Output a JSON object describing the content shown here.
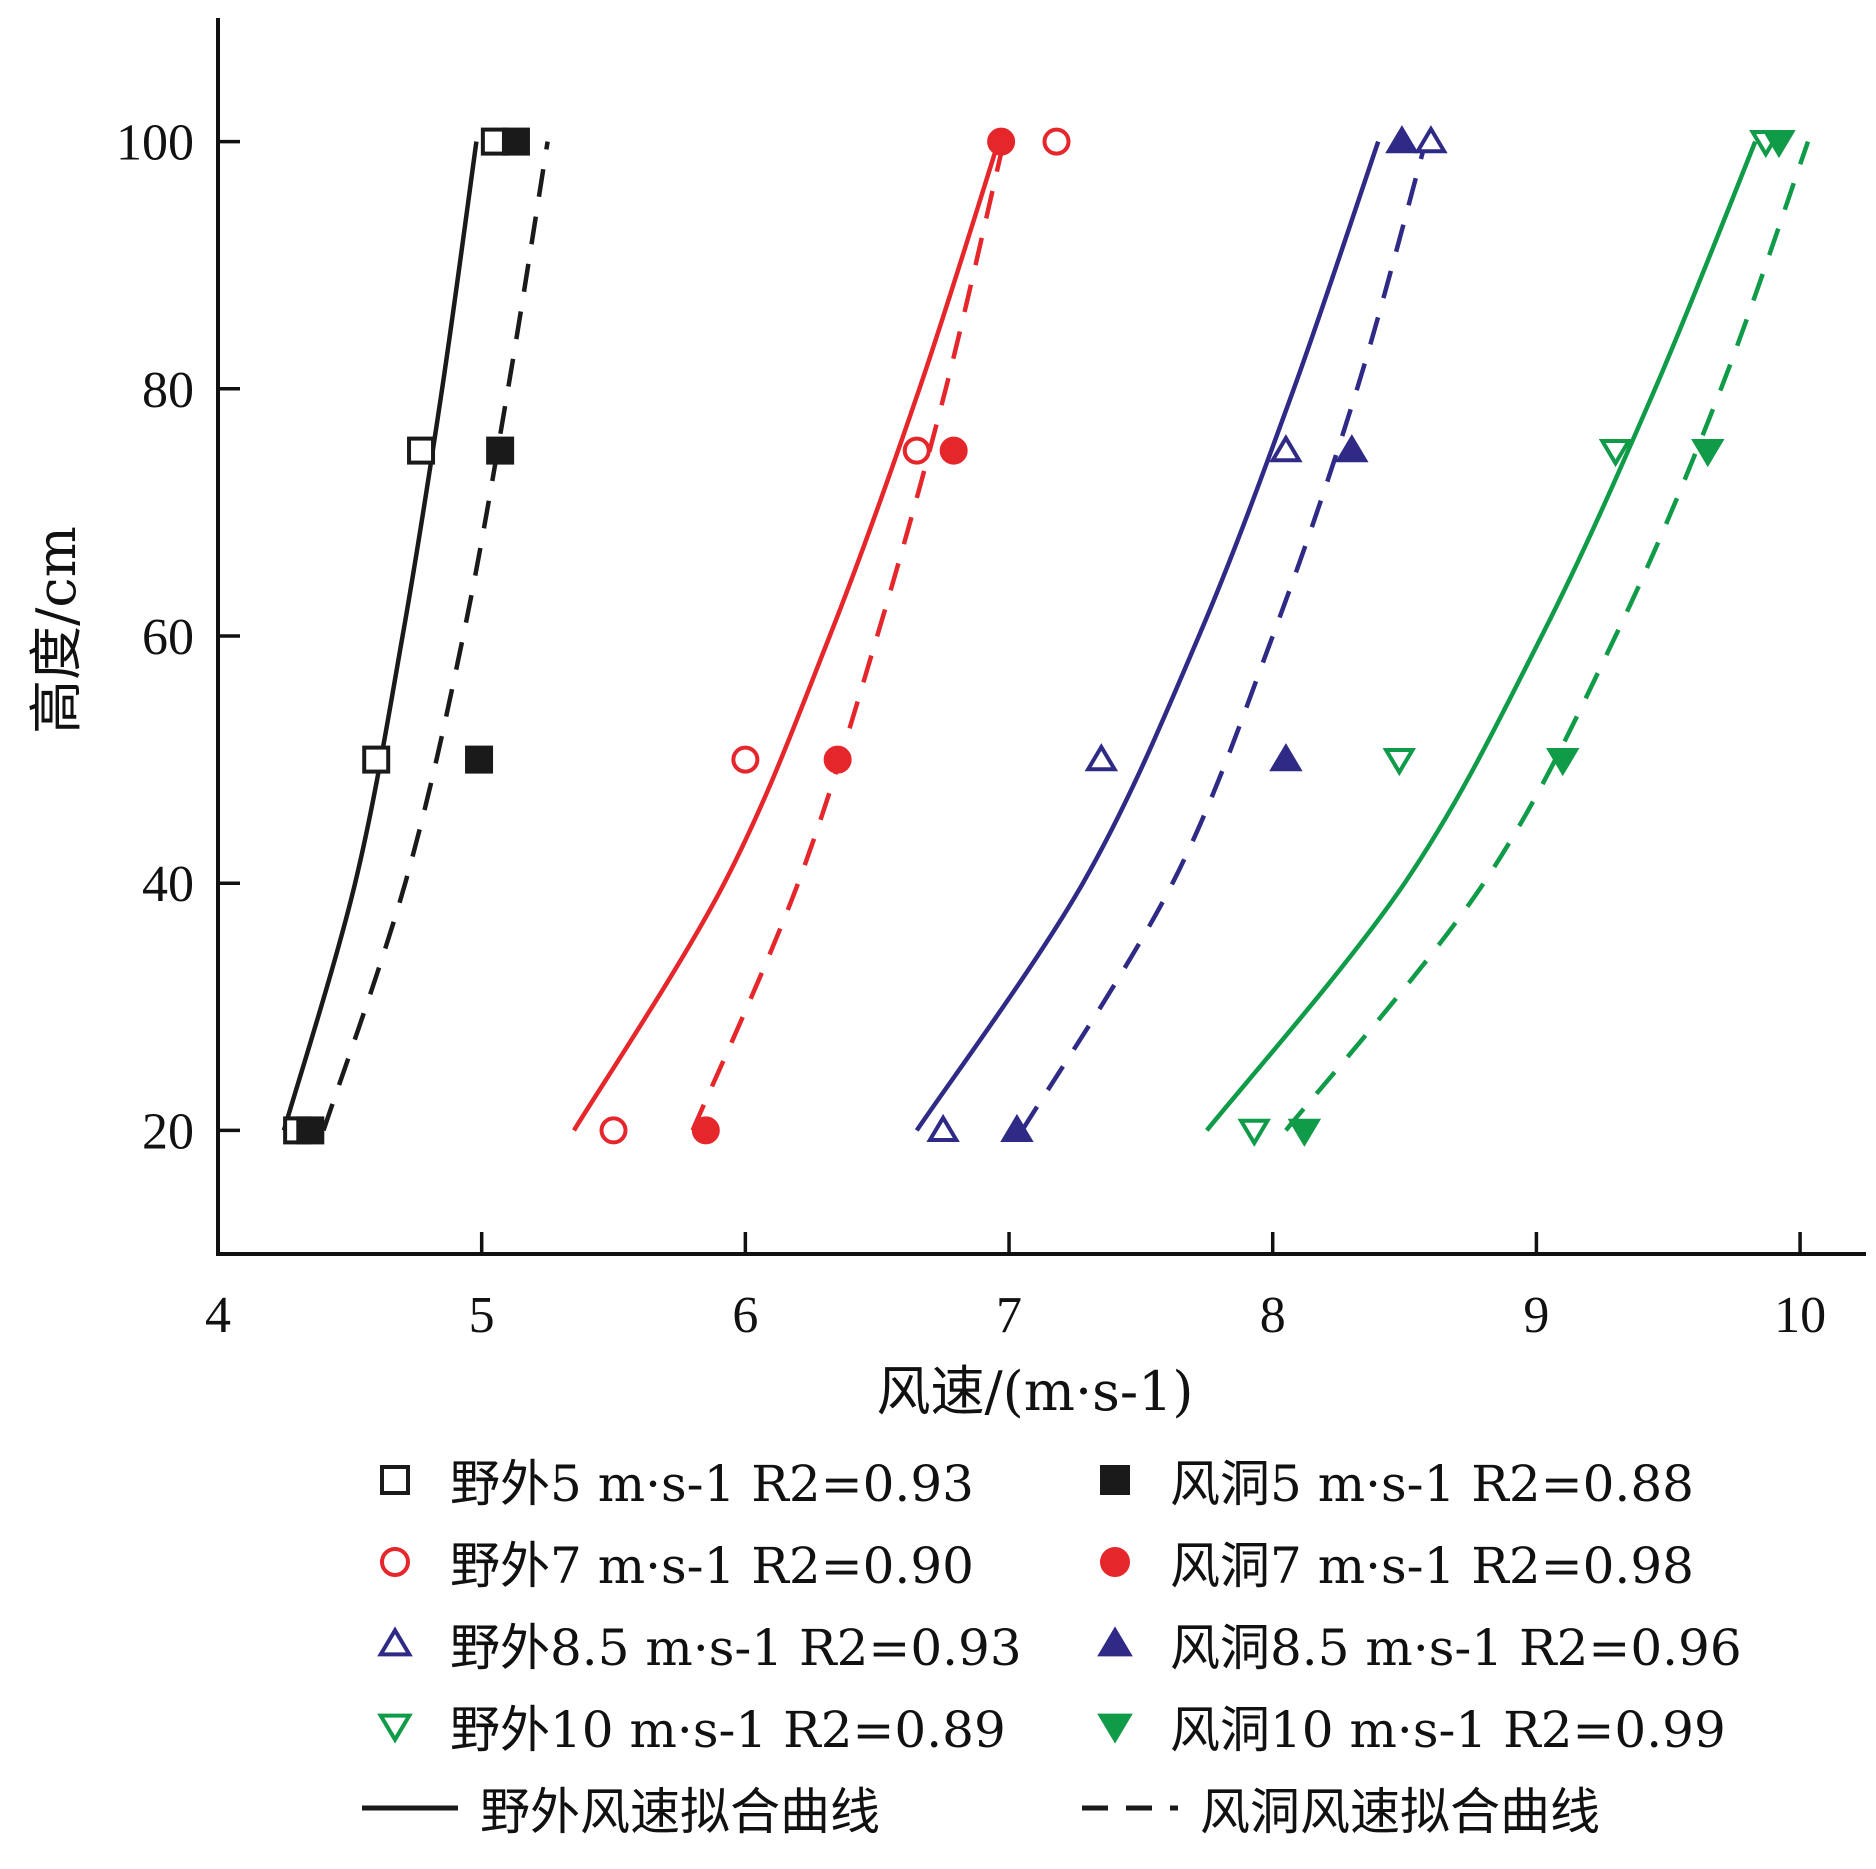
{
  "chart_data": {
    "type": "scatter",
    "xlabel": "风速/(m·s-1)",
    "ylabel": "高度/cm",
    "xlim": [
      4,
      10.25
    ],
    "ylim": [
      10,
      110
    ],
    "x_ticks": [
      4,
      5,
      6,
      7,
      8,
      9,
      10
    ],
    "y_ticks": [
      20,
      40,
      60,
      80,
      100
    ],
    "grid": false,
    "legend_position": "bottom",
    "series": [
      {
        "name": "野外5 m·s-1 R2=0.93",
        "color": "#1a1a1a",
        "marker": "square-open",
        "points": [
          [
            4.3,
            20
          ],
          [
            4.6,
            50
          ],
          [
            4.77,
            75
          ],
          [
            5.05,
            100
          ]
        ]
      },
      {
        "name": "风洞5 m·s-1 R2=0.88",
        "color": "#1a1a1a",
        "marker": "square-filled",
        "points": [
          [
            4.35,
            20
          ],
          [
            4.99,
            50
          ],
          [
            5.07,
            75
          ],
          [
            5.13,
            100
          ]
        ]
      },
      {
        "name": "野外7 m·s-1 R2=0.90",
        "color": "#e5262a",
        "marker": "circle-open",
        "points": [
          [
            5.5,
            20
          ],
          [
            6.0,
            50
          ],
          [
            6.65,
            75
          ],
          [
            7.18,
            100
          ]
        ]
      },
      {
        "name": "风洞7 m·s-1 R2=0.98",
        "color": "#e5262a",
        "marker": "circle-filled",
        "points": [
          [
            5.85,
            20
          ],
          [
            6.35,
            50
          ],
          [
            6.79,
            75
          ],
          [
            6.97,
            100
          ]
        ]
      },
      {
        "name": "野外8.5 m·s-1 R2=0.93",
        "color": "#2e2a86",
        "marker": "triangle-up-open",
        "points": [
          [
            6.75,
            20
          ],
          [
            7.35,
            50
          ],
          [
            8.05,
            75
          ],
          [
            8.6,
            100
          ]
        ]
      },
      {
        "name": "风洞8.5 m·s-1 R2=0.96",
        "color": "#2e2a86",
        "marker": "triangle-up-filled",
        "points": [
          [
            7.03,
            20
          ],
          [
            8.05,
            50
          ],
          [
            8.3,
            75
          ],
          [
            8.49,
            100
          ]
        ]
      },
      {
        "name": "野外10 m·s-1 R2=0.89",
        "color": "#0f9b48",
        "marker": "triangle-down-open",
        "points": [
          [
            7.93,
            20
          ],
          [
            8.48,
            50
          ],
          [
            9.3,
            75
          ],
          [
            9.87,
            100
          ]
        ]
      },
      {
        "name": "风洞10 m·s-1 R2=0.99",
        "color": "#0f9b48",
        "marker": "triangle-down-filled",
        "points": [
          [
            8.12,
            20
          ],
          [
            9.1,
            50
          ],
          [
            9.65,
            75
          ],
          [
            9.92,
            100
          ]
        ]
      }
    ],
    "fit_lines": [
      {
        "group": "野外风速拟合曲线",
        "color": "#1a1a1a",
        "style": "solid",
        "points": [
          [
            4.25,
            20
          ],
          [
            4.52,
            40
          ],
          [
            4.7,
            60
          ],
          [
            4.85,
            80
          ],
          [
            4.98,
            100
          ]
        ]
      },
      {
        "group": "风洞风速拟合曲线",
        "color": "#1a1a1a",
        "style": "dashed",
        "points": [
          [
            4.4,
            20
          ],
          [
            4.71,
            40
          ],
          [
            4.93,
            60
          ],
          [
            5.1,
            80
          ],
          [
            5.25,
            100
          ]
        ]
      },
      {
        "group": "野外风速拟合曲线",
        "color": "#e5262a",
        "style": "solid",
        "points": [
          [
            5.35,
            20
          ],
          [
            5.92,
            40
          ],
          [
            6.32,
            60
          ],
          [
            6.66,
            80
          ],
          [
            6.96,
            100
          ]
        ]
      },
      {
        "group": "风洞风速拟合曲线",
        "color": "#e5262a",
        "style": "dashed",
        "points": [
          [
            5.8,
            20
          ],
          [
            6.2,
            40
          ],
          [
            6.5,
            60
          ],
          [
            6.76,
            80
          ],
          [
            6.98,
            100
          ]
        ]
      },
      {
        "group": "野外风速拟合曲线",
        "color": "#2e2a86",
        "style": "solid",
        "points": [
          [
            6.65,
            20
          ],
          [
            7.28,
            40
          ],
          [
            7.72,
            60
          ],
          [
            8.08,
            80
          ],
          [
            8.4,
            100
          ]
        ]
      },
      {
        "group": "风洞风速拟合曲线",
        "color": "#2e2a86",
        "style": "dashed",
        "points": [
          [
            7.05,
            20
          ],
          [
            7.62,
            40
          ],
          [
            8.0,
            60
          ],
          [
            8.32,
            80
          ],
          [
            8.58,
            100
          ]
        ]
      },
      {
        "group": "野外风速拟合曲线",
        "color": "#0f9b48",
        "style": "solid",
        "points": [
          [
            7.75,
            20
          ],
          [
            8.5,
            40
          ],
          [
            9.02,
            60
          ],
          [
            9.45,
            80
          ],
          [
            9.83,
            100
          ]
        ]
      },
      {
        "group": "风洞风速拟合曲线",
        "color": "#0f9b48",
        "style": "dashed",
        "points": [
          [
            8.05,
            20
          ],
          [
            8.8,
            40
          ],
          [
            9.3,
            60
          ],
          [
            9.7,
            80
          ],
          [
            10.03,
            100
          ]
        ]
      }
    ],
    "legend": {
      "entries": [
        {
          "label": "野外5 m·s-1  R2=0.93",
          "color": "#1a1a1a",
          "marker": "square-open"
        },
        {
          "label": "风洞5  m·s-1  R2=0.88",
          "color": "#1a1a1a",
          "marker": "square-filled"
        },
        {
          "label": "野外7 m·s-1  R2=0.90",
          "color": "#e5262a",
          "marker": "circle-open"
        },
        {
          "label": "风洞7 m·s-1  R2=0.98",
          "color": "#e5262a",
          "marker": "circle-filled"
        },
        {
          "label": "野外8.5 m·s-1  R2=0.93",
          "color": "#2e2a86",
          "marker": "triangle-up-open"
        },
        {
          "label": "风洞8.5 m·s-1  R2=0.96",
          "color": "#2e2a86",
          "marker": "triangle-up-filled"
        },
        {
          "label": "野外10 m·s-1  R2=0.89",
          "color": "#0f9b48",
          "marker": "triangle-down-open"
        },
        {
          "label": "风洞10 m·s-1  R2=0.99",
          "color": "#0f9b48",
          "marker": "triangle-down-filled"
        },
        {
          "label": "野外风速拟合曲线",
          "color": "#1a1a1a",
          "marker": "line-solid"
        },
        {
          "label": "风洞风速拟合曲线",
          "color": "#1a1a1a",
          "marker": "line-dashed"
        }
      ]
    }
  }
}
